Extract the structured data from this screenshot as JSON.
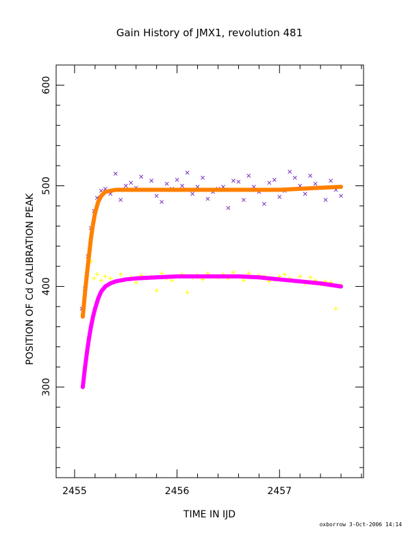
{
  "chart_data": {
    "type": "scatter",
    "title": "Gain History of JMX1, revolution 481",
    "xlabel": "TIME IN IJD",
    "ylabel": "POSITION OF Cd CALIBRATION PEAK",
    "xlim": [
      2454.82,
      2457.82
    ],
    "ylim": [
      210,
      620
    ],
    "xticks": [
      2455,
      2456,
      2457
    ],
    "xtick_labels": [
      "2455",
      "2456",
      "2457"
    ],
    "yticks": [
      300,
      400,
      500,
      600
    ],
    "ytick_labels": [
      "300",
      "400",
      "500",
      "600"
    ],
    "grid": false,
    "legend": "none",
    "series": [
      {
        "marker": "x",
        "color": "#7b2fbf",
        "x": [
          2455.07,
          2455.1,
          2455.13,
          2455.16,
          2455.19,
          2455.22,
          2455.26,
          2455.3,
          2455.35,
          2455.4,
          2455.45,
          2455.5,
          2455.55,
          2455.6,
          2455.65,
          2455.7,
          2455.75,
          2455.8,
          2455.85,
          2455.9,
          2455.95,
          2456.0,
          2456.05,
          2456.1,
          2456.15,
          2456.2,
          2456.25,
          2456.3,
          2456.35,
          2456.4,
          2456.45,
          2456.5,
          2456.55,
          2456.6,
          2456.65,
          2456.7,
          2456.75,
          2456.8,
          2456.85,
          2456.9,
          2456.95,
          2457.0,
          2457.05,
          2457.1,
          2457.15,
          2457.2,
          2457.25,
          2457.3,
          2457.35,
          2457.4,
          2457.45,
          2457.5,
          2457.55,
          2457.6
        ],
        "y": [
          378,
          398,
          430,
          458,
          475,
          488,
          495,
          497,
          492,
          512,
          486,
          500,
          503,
          498,
          509,
          496,
          505,
          490,
          484,
          502,
          497,
          506,
          500,
          513,
          492,
          499,
          508,
          487,
          494,
          497,
          499,
          478,
          505,
          504,
          486,
          510,
          499,
          494,
          482,
          503,
          506,
          489,
          495,
          514,
          508,
          500,
          492,
          510,
          502,
          498,
          486,
          505,
          496,
          490
        ]
      },
      {
        "marker": "+",
        "color": "#ffff00",
        "x": [
          2455.07,
          2455.1,
          2455.13,
          2455.16,
          2455.19,
          2455.22,
          2455.26,
          2455.3,
          2455.35,
          2455.4,
          2455.45,
          2455.5,
          2455.55,
          2455.6,
          2455.65,
          2455.7,
          2455.75,
          2455.8,
          2455.85,
          2455.9,
          2455.95,
          2456.0,
          2456.05,
          2456.1,
          2456.15,
          2456.2,
          2456.25,
          2456.3,
          2456.35,
          2456.4,
          2456.45,
          2456.5,
          2456.55,
          2456.6,
          2456.65,
          2456.7,
          2456.75,
          2456.8,
          2456.85,
          2456.9,
          2456.95,
          2457.0,
          2457.05,
          2457.1,
          2457.15,
          2457.2,
          2457.25,
          2457.3,
          2457.35,
          2457.4,
          2457.45,
          2457.5,
          2457.55,
          2457.6
        ],
        "y": [
          372,
          390,
          410,
          425,
          408,
          412,
          406,
          410,
          408,
          405,
          412,
          407,
          409,
          404,
          411,
          408,
          410,
          396,
          413,
          408,
          406,
          410,
          412,
          394,
          409,
          411,
          407,
          413,
          410,
          409,
          412,
          408,
          414,
          410,
          406,
          413,
          409,
          411,
          410,
          405,
          407,
          410,
          412,
          408,
          405,
          410,
          403,
          409,
          406,
          402,
          405,
          404,
          378,
          401
        ]
      },
      {
        "type": "line",
        "name": "",
        "color": "#ff8000",
        "x": [
          2455.08,
          2455.1,
          2455.12,
          2455.14,
          2455.16,
          2455.18,
          2455.2,
          2455.23,
          2455.26,
          2455.3,
          2455.35,
          2455.4,
          2455.5,
          2455.6,
          2455.8,
          2456.0,
          2456.2,
          2456.4,
          2456.6,
          2456.8,
          2457.0,
          2457.2,
          2457.4,
          2457.6
        ],
        "y": [
          370,
          392,
          412,
          430,
          448,
          462,
          473,
          484,
          490,
          494,
          495,
          496,
          496,
          496,
          496,
          496,
          496,
          496,
          496,
          496,
          496,
          497,
          498,
          499
        ]
      },
      {
        "type": "line",
        "name": "",
        "color": "#ff00ff",
        "x": [
          2455.08,
          2455.1,
          2455.12,
          2455.14,
          2455.16,
          2455.18,
          2455.2,
          2455.23,
          2455.26,
          2455.3,
          2455.35,
          2455.4,
          2455.5,
          2455.6,
          2455.8,
          2456.0,
          2456.2,
          2456.4,
          2456.6,
          2456.8,
          2457.0,
          2457.2,
          2457.4,
          2457.6
        ],
        "y": [
          300,
          318,
          334,
          348,
          360,
          370,
          378,
          388,
          395,
          400,
          403,
          405,
          407,
          408,
          409,
          410,
          410,
          410,
          410,
          409,
          407,
          405,
          403,
          400
        ]
      }
    ]
  },
  "footer": {
    "text": "oxborrow   3-Oct-2006 14:14"
  }
}
